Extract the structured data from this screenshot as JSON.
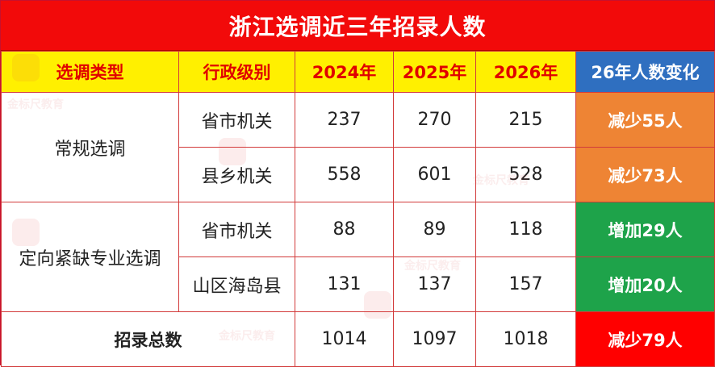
{
  "title": "浙江选调近三年招录人数",
  "headers": {
    "type": "选调类型",
    "level": "行政级别",
    "y2024": "2024年",
    "y2025": "2025年",
    "y2026": "2026年",
    "change": "26年人数变化"
  },
  "groups": [
    {
      "type": "常规选调",
      "rows": [
        {
          "level": "省市机关",
          "y2024": "237",
          "y2025": "270",
          "y2026": "215",
          "change": "减少55人",
          "trend": "decrease"
        },
        {
          "level": "县乡机关",
          "y2024": "558",
          "y2025": "601",
          "y2026": "528",
          "change": "减少73人",
          "trend": "decrease"
        }
      ]
    },
    {
      "type": "定向紧缺专业选调",
      "rows": [
        {
          "level": "省市机关",
          "y2024": "88",
          "y2025": "89",
          "y2026": "118",
          "change": "增加29人",
          "trend": "increase"
        },
        {
          "level": "山区海岛县",
          "y2024": "131",
          "y2025": "137",
          "y2026": "157",
          "change": "增加20人",
          "trend": "increase"
        }
      ]
    }
  ],
  "total": {
    "label": "招录总数",
    "y2024": "1014",
    "y2025": "1097",
    "y2026": "1018",
    "change": "减少79人"
  },
  "watermark_text": "金标尺教育",
  "colors": {
    "title_bg": "#f20a0a",
    "header_bg": "#fff000",
    "header_text": "#e00000",
    "change_header_bg": "#2f6fc0",
    "decrease_bg": "#ee8434",
    "increase_bg": "#1ea34a",
    "total_change_bg": "#ff0000"
  }
}
